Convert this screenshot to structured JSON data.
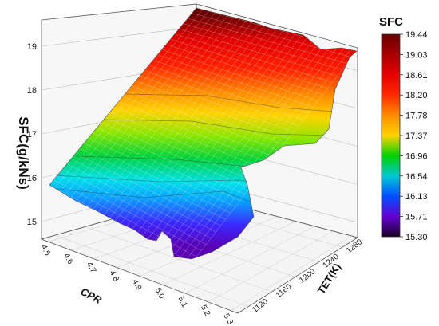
{
  "chart_data": {
    "type": "surface3d",
    "title": "",
    "xlabel": "CPR",
    "ylabel": "TET(K)",
    "zlabel": "SFC(g/kNs)",
    "x_ticks": [
      "4.5",
      "4.6",
      "4.7",
      "4.8",
      "4.9",
      "5.0",
      "5.1",
      "5.2",
      "5.3"
    ],
    "y_ticks": [
      "1120",
      "1160",
      "1200",
      "1240",
      "1280"
    ],
    "z_ticks": [
      "15",
      "16",
      "17",
      "18",
      "19"
    ],
    "xlim": [
      4.5,
      5.3
    ],
    "ylim": [
      1100,
      1290
    ],
    "zlim": [
      14.6,
      19.6
    ],
    "colorbar": {
      "title": "SFC",
      "levels": [
        "19.44",
        "19.03",
        "18.61",
        "18.20",
        "17.78",
        "17.37",
        "16.96",
        "16.54",
        "16.13",
        "15.71",
        "15.30"
      ],
      "colors": [
        "#6b0000",
        "#a80000",
        "#e60000",
        "#ff2a00",
        "#ff8c00",
        "#ffd200",
        "#b4e600",
        "#00d200",
        "#00c8d2",
        "#0050ff",
        "#6400d2",
        "#1a0028"
      ]
    },
    "surface_samples": [
      {
        "CPR": 4.5,
        "TET": 1100,
        "SFC": 15.98
      },
      {
        "CPR": 4.9,
        "TET": 1100,
        "SFC": 15.3
      },
      {
        "CPR": 5.3,
        "TET": 1100,
        "SFC": 15.4
      },
      {
        "CPR": 4.5,
        "TET": 1290,
        "SFC": 19.44
      },
      {
        "CPR": 5.3,
        "TET": 1290,
        "SFC": 19.03
      },
      {
        "CPR": 5.0,
        "TET": 1240,
        "SFC": 18.2
      }
    ],
    "grid": true
  }
}
